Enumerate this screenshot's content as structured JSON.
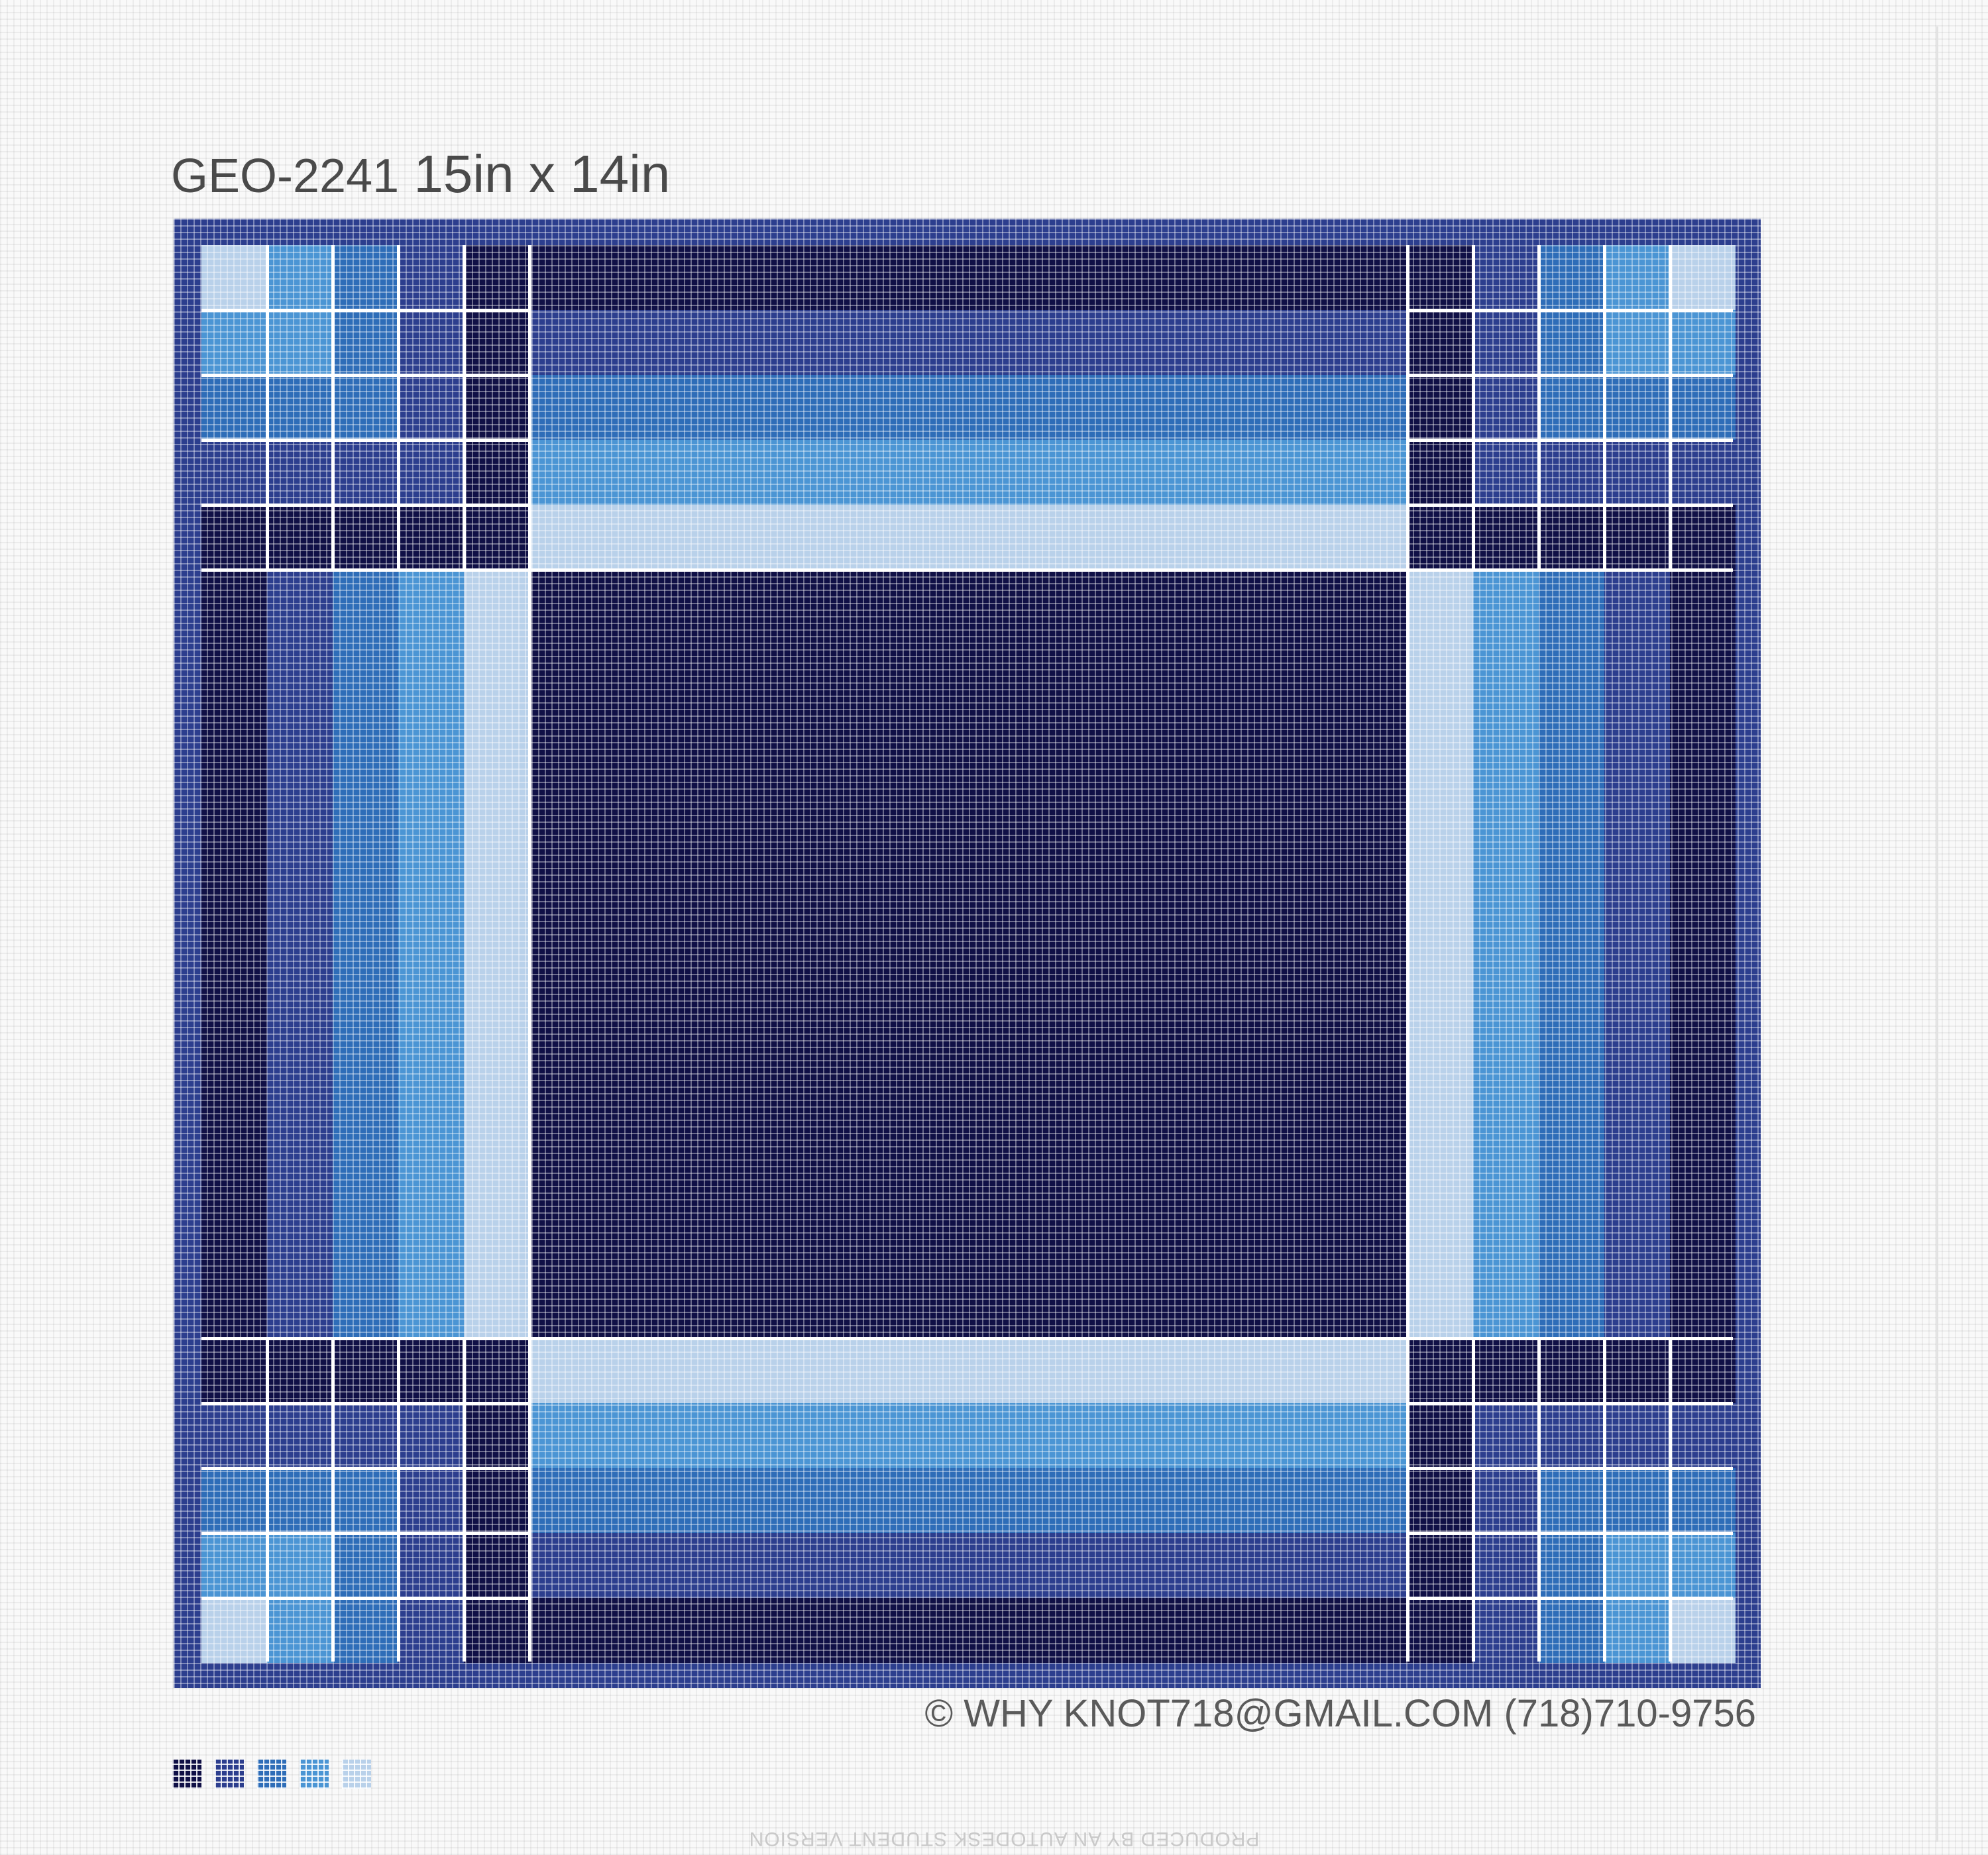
{
  "header": {
    "code": "GEO-2241",
    "size": "15in x 14in"
  },
  "footer": {
    "copyright": "© WHY KNOT718@GMAIL.COM (718)710-9756",
    "watermark": "PRODUCED BY AN AUTODESK STUDENT VERSION"
  },
  "colors": {
    "navy": "#1b1f5e",
    "deep_navy": "#101046",
    "royal": "#2c3e8e",
    "mid_blue": "#2e6db8",
    "sky": "#4b95d4",
    "pale": "#b9d1ea",
    "grid_line": "#ffffff"
  },
  "palette": [
    {
      "name": "deep-navy-swatch",
      "color": "#101046"
    },
    {
      "name": "royal-swatch",
      "color": "#2c3e8e"
    },
    {
      "name": "mid-blue-swatch",
      "color": "#2e6db8"
    },
    {
      "name": "sky-swatch",
      "color": "#4b95d4"
    },
    {
      "name": "pale-swatch",
      "color": "#b9d1ea"
    }
  ]
}
